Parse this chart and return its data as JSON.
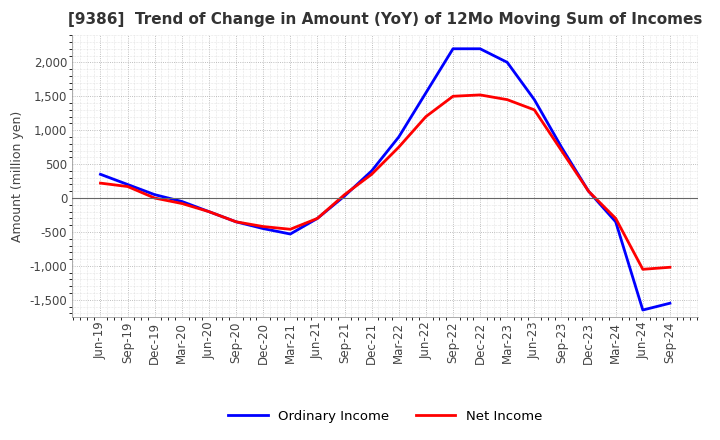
{
  "title": "[9386]  Trend of Change in Amount (YoY) of 12Mo Moving Sum of Incomes",
  "ylabel": "Amount (million yen)",
  "x_labels": [
    "Jun-19",
    "Sep-19",
    "Dec-19",
    "Mar-20",
    "Jun-20",
    "Sep-20",
    "Dec-20",
    "Mar-21",
    "Jun-21",
    "Sep-21",
    "Dec-21",
    "Mar-22",
    "Jun-22",
    "Sep-22",
    "Dec-22",
    "Mar-23",
    "Jun-23",
    "Sep-23",
    "Dec-23",
    "Mar-24",
    "Jun-24",
    "Sep-24"
  ],
  "ordinary_income": [
    350,
    200,
    50,
    -50,
    -200,
    -350,
    -450,
    -530,
    -300,
    30,
    400,
    900,
    1550,
    2200,
    2200,
    2000,
    1450,
    750,
    100,
    -350,
    -1650,
    -1550
  ],
  "net_income": [
    220,
    170,
    0,
    -80,
    -200,
    -350,
    -420,
    -460,
    -300,
    50,
    350,
    750,
    1200,
    1500,
    1520,
    1450,
    1300,
    700,
    100,
    -300,
    -1050,
    -1020
  ],
  "ordinary_color": "#0000ff",
  "net_color": "#ff0000",
  "ylim": [
    -1750,
    2400
  ],
  "yticks": [
    -1500,
    -1000,
    -500,
    0,
    500,
    1000,
    1500,
    2000
  ],
  "background_color": "#ffffff",
  "grid_color": "#aaaaaa",
  "title_fontsize": 11,
  "label_fontsize": 9,
  "tick_fontsize": 8.5,
  "legend_fontsize": 9.5
}
